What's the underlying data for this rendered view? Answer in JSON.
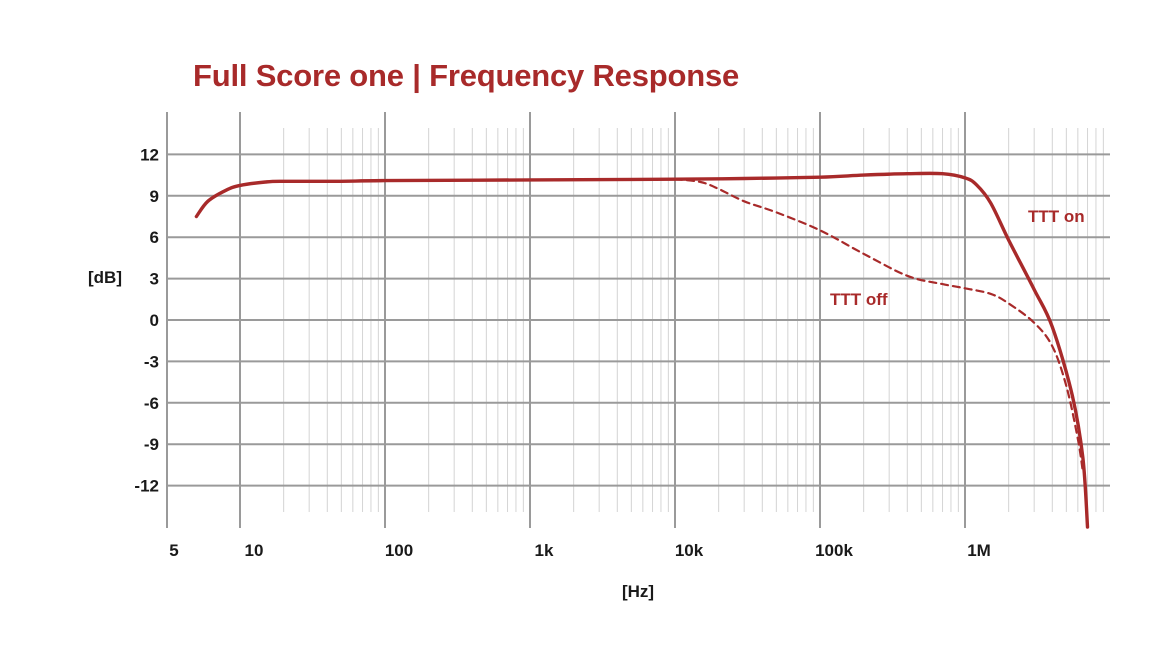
{
  "chart_data": {
    "type": "line",
    "title": "Full Score one | Frequency Response",
    "xlabel": "[Hz]",
    "ylabel": "[dB]",
    "xscale": "log",
    "xlim": [
      5,
      7500000
    ],
    "ylim": [
      -15,
      14
    ],
    "grid": true,
    "x_ticks": [
      5,
      10,
      100,
      1000,
      10000,
      100000,
      1000000
    ],
    "x_tick_labels": [
      "5",
      "10",
      "100",
      "1k",
      "10k",
      "100k",
      "1M"
    ],
    "y_ticks": [
      12,
      9,
      6,
      3,
      0,
      -3,
      -6,
      -9,
      -12
    ],
    "y_tick_labels": [
      "12",
      "9",
      "6",
      "3",
      "0",
      "-3",
      "-6",
      "-9",
      "-12"
    ],
    "colors": {
      "series": "#a82a2a",
      "title": "#a82a2a",
      "grid": "#9a9a9a",
      "minor_grid": "#d4d4d4"
    },
    "series": [
      {
        "name": "TTT on",
        "style": "solid",
        "x": [
          5,
          6,
          8,
          10,
          15,
          20,
          50,
          100,
          1000,
          10000,
          30000,
          100000,
          200000,
          400000,
          700000,
          1000000,
          1200000,
          1500000,
          2000000,
          3000000,
          4000000,
          5500000,
          6500000,
          7000000
        ],
        "y": [
          7.5,
          8.6,
          9.4,
          9.75,
          10.0,
          10.05,
          10.05,
          10.1,
          10.15,
          10.2,
          10.25,
          10.35,
          10.5,
          10.6,
          10.6,
          10.3,
          9.8,
          8.5,
          5.8,
          2.2,
          -0.5,
          -5.5,
          -10.0,
          -15.0
        ]
      },
      {
        "name": "TTT off",
        "style": "dashed",
        "x": [
          10000,
          15000,
          20000,
          30000,
          50000,
          100000,
          200000,
          400000,
          700000,
          1000000,
          1500000,
          2000000,
          3000000,
          4000000,
          5000000,
          6000000,
          6500000
        ],
        "y": [
          10.2,
          10.0,
          9.5,
          8.6,
          7.8,
          6.5,
          4.8,
          3.2,
          2.6,
          2.3,
          1.9,
          1.2,
          -0.2,
          -1.9,
          -4.8,
          -8.6,
          -11.0
        ]
      }
    ]
  }
}
